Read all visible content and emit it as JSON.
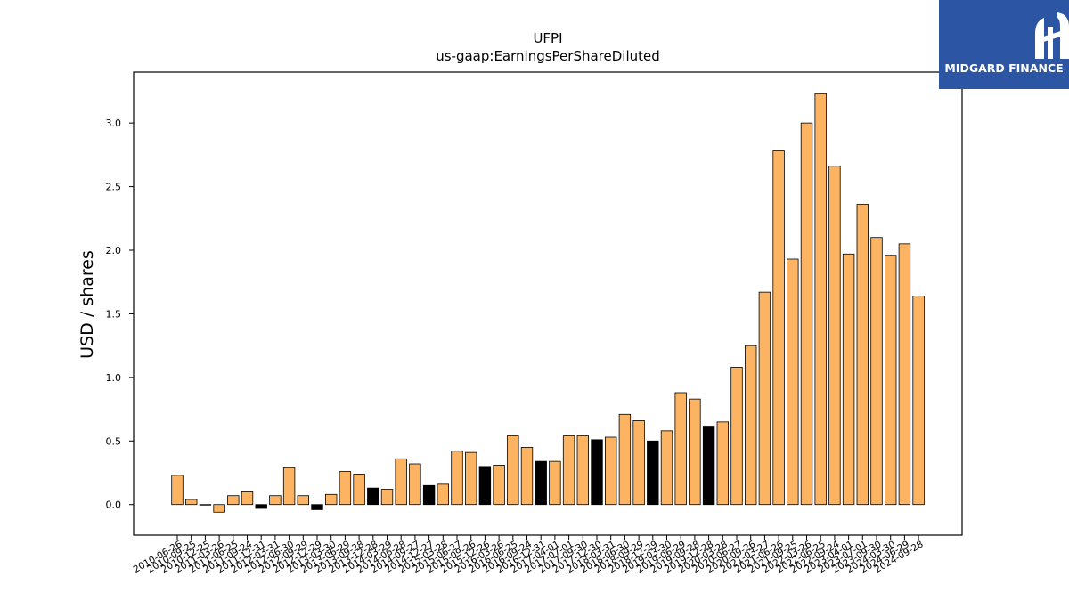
{
  "chart_data": {
    "type": "bar",
    "title": "UFPI",
    "subtitle": "us-gaap:EarningsPerShareDiluted",
    "xlabel": "",
    "ylabel": "USD / shares",
    "ylim": [
      -0.24,
      3.4
    ],
    "yticks": [
      "0.0",
      "0.5",
      "1.0",
      "1.5",
      "2.0",
      "2.5",
      "3.0"
    ],
    "grid": false,
    "categories": [
      "2010-06-26",
      "2010-09-25",
      "2010-12-25",
      "2011-03-26",
      "2011-06-25",
      "2011-09-24",
      "2011-12-31",
      "2012-03-31",
      "2012-06-30",
      "2012-09-29",
      "2012-12-29",
      "2013-03-30",
      "2013-06-29",
      "2013-09-28",
      "2013-12-28",
      "2014-03-29",
      "2014-06-28",
      "2014-09-27",
      "2014-12-27",
      "2015-03-28",
      "2015-06-27",
      "2015-09-26",
      "2015-12-26",
      "2016-03-26",
      "2016-06-25",
      "2016-09-24",
      "2016-12-31",
      "2017-04-01",
      "2017-07-01",
      "2017-09-30",
      "2017-12-30",
      "2018-03-31",
      "2018-06-30",
      "2018-09-29",
      "2018-12-29",
      "2019-03-30",
      "2019-06-29",
      "2019-09-28",
      "2019-12-28",
      "2020-03-28",
      "2020-06-27",
      "2020-09-26",
      "2021-03-27",
      "2021-06-26",
      "2021-09-25",
      "2022-03-26",
      "2022-06-25",
      "2022-09-24",
      "2023-04-01",
      "2023-07-01",
      "2023-09-30",
      "2024-03-30",
      "2024-06-29",
      "2024-09-28"
    ],
    "values": [
      0.23,
      0.04,
      0.0,
      -0.06,
      0.07,
      0.1,
      -0.03,
      0.07,
      0.29,
      0.07,
      -0.04,
      0.08,
      0.26,
      0.24,
      0.13,
      0.12,
      0.36,
      0.32,
      0.15,
      0.16,
      0.42,
      0.41,
      0.3,
      0.31,
      0.54,
      0.45,
      0.34,
      0.34,
      0.54,
      0.54,
      0.51,
      0.53,
      0.71,
      0.66,
      0.5,
      0.58,
      0.88,
      0.83,
      0.61,
      0.65,
      1.08,
      1.25,
      1.67,
      2.78,
      1.93,
      3.0,
      3.23,
      2.66,
      1.97,
      2.36,
      2.1,
      1.96,
      2.05,
      1.64
    ],
    "bar_colors": [
      "#fdb462",
      "#fdb462",
      "#fdb462",
      "#fdb462",
      "#fdb462",
      "#fdb462",
      "#000000",
      "#fdb462",
      "#fdb462",
      "#fdb462",
      "#000000",
      "#fdb462",
      "#fdb462",
      "#fdb462",
      "#000000",
      "#fdb462",
      "#fdb462",
      "#fdb462",
      "#000000",
      "#fdb462",
      "#fdb462",
      "#fdb462",
      "#000000",
      "#fdb462",
      "#fdb462",
      "#fdb462",
      "#000000",
      "#fdb462",
      "#fdb462",
      "#fdb462",
      "#000000",
      "#fdb462",
      "#fdb462",
      "#fdb462",
      "#000000",
      "#fdb462",
      "#fdb462",
      "#fdb462",
      "#000000",
      "#fdb462",
      "#fdb462",
      "#fdb462",
      "#fdb462",
      "#fdb462",
      "#fdb462",
      "#fdb462",
      "#fdb462",
      "#fdb462",
      "#fdb462",
      "#fdb462",
      "#fdb462",
      "#fdb462",
      "#fdb462",
      "#fdb462"
    ]
  },
  "logo": {
    "text": "MIDGARD FINANCE",
    "background": "#2c55a3"
  }
}
